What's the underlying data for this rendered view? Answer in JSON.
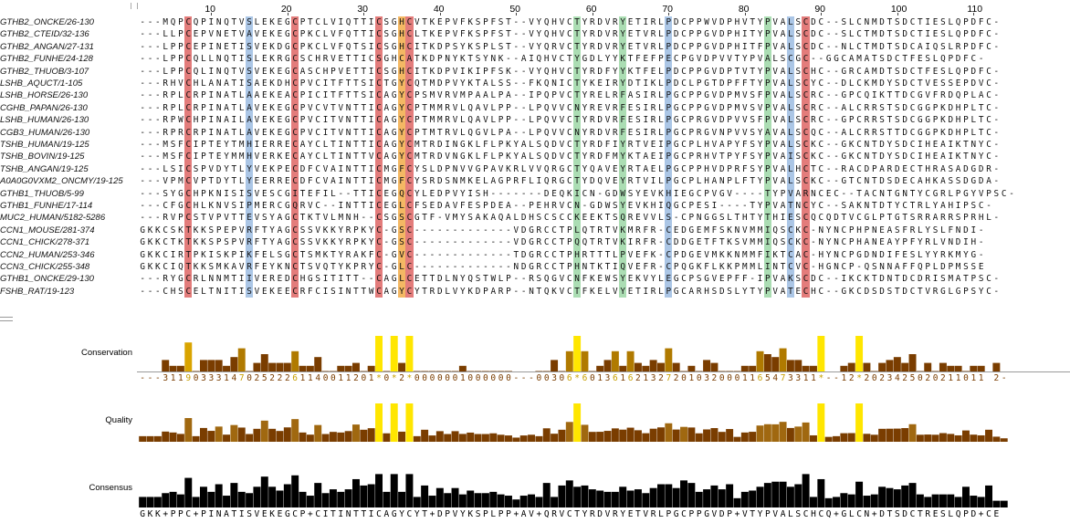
{
  "ruler_ticks": [
    10,
    20,
    30,
    40,
    50,
    60,
    70,
    80,
    90,
    100,
    110
  ],
  "sequences": [
    {
      "name": "GTHB2_ONCKE/26-130",
      "seq": "---MQPCQPINQTVSLEKEGCPTCLVIQTTICSGHCVTKEPVFKSPFST--VYQHVCTYRDVRYETIRLPDCPPWVDPHVTYPVALSCDC--SLCNMDTSDCTIESLQPDFC-"
    },
    {
      "name": "GTHB2_CTEID/32-136",
      "seq": "---LLPCEPVNETVAVEKEGCPKCLVFQTTICSGHCLTKEPVFKSPFST--VYQHVCTYRDVRYETVRLPDCPPGVDPHITYPVALSCDC--SLCTMDTSDCTIESLQPDFC-"
    },
    {
      "name": "GTHB2_ANGAN/27-131",
      "seq": "---LPPCEPINETISVEKDGCPKCLVFQTSICSGHCITKDPSYKSPLST--VYQRVCTYRDVRYETVRLPDCPPGVDPHITFPVALSCDC--NLCTMDTSDCAIQSLRPDFC-"
    },
    {
      "name": "GTHB2_FUNHE/24-128",
      "seq": "---LPPCQLLNQTISLEKRGCSCHRVETTICSGHCATKDPNYKTSYNK--AIQHVCTYGDLYYKTFEFPECPGVDPVVTYPVALSCGC--GGCAMATSDCTFESLQPDFC-"
    },
    {
      "name": "GTHB2_THUOB/3-107",
      "seq": "---LPPCQLINQTVSVEKEGCASCHPVETTICSGHCITKDPVIKIPFSK--VYQHVCTYRDFYYKTFELPDCPPGVDPTVTYPVALSCHC--GRCAMDTSDCTFESLQPDFC-"
    },
    {
      "name": "LSHB_AQUCT/1-105",
      "seq": "---RHVCHLANATISAEKDHCPVCITFTTSICTGYCQTMDPVYKTALSS--FKQNICTYKEIRYDTIKLPDCLPGTDPFFTYPVALSCYC--DLCKMDYSDCTVESSEPDVC-"
    },
    {
      "name": "LSHB_HORSE/26-130",
      "seq": "---RPLCRPINATLAAEKEACPICITFTTSICAGYCPSMVRVMPAALPA--IPQPVCTYRELRFASIRLPGCPPGVDPMVSFPVALSCRC--GPCQIKTTDCGVFRDQPLAC-"
    },
    {
      "name": "CGHB_PAPAN/26-130",
      "seq": "---RPLCRPINATLAVEKEGCPVCVTVNTTICAGYCPTMMRVLQAVLPP--LPQVVCNYREVRFESIRLPGCPPGVDPMVSVPVALSCRC--ALCRRSTSDCGGPKDHPLTC-"
    },
    {
      "name": "LSHB_HUMAN/26-130",
      "seq": "---RPWCHPINAILAVEKEGCPVCITVNTTICAGYCPTMMRVLQAVLPP--LPQVVCTYRDVRFESIRLPGCPRGVDPVVSFPVALSCRC--GPCRRSTSDCGGPKDHPLTC-"
    },
    {
      "name": "CGB3_HUMAN/26-130",
      "seq": "---RPRCRPINATLAVEKEGCPVCITVNTTICAGYCPTMTRVLQGVLPA--LPQVVCNYRDVRFESIRLPGCPRGVNPVVSYAVALSCQC--ALCRRSTTDCGGPKDHPLTC-"
    },
    {
      "name": "TSHB_HUMAN/19-125",
      "seq": "---MSFCIPTEYTMHIERRECAYCLTINTTICAGYCMTRDINGKLFLPKYALSQDVCTYRDFIYRTVEIPGCPLHVAPYFSYPVALSCKC--GKCNTDYSDCIHEAIKTNYC-"
    },
    {
      "name": "TSHB_BOVIN/19-125",
      "seq": "---MSFCIPTEYMMHVERKECAYCLTINTTVCAGYCMTRDVNGKLFLPKYALSQDVCTYRDFMYKTAEIPGCPRHVTPYFSYPVAISCKC--GKCNTDYSDCIHEAIKTNYC-"
    },
    {
      "name": "TSHB_ANGAN/19-125",
      "seq": "---LSICSPVDYTLYVEKPECDFCVAINTTICMGFCYSLDPNVVGPAVKRLVVQRGCTYQAVEYRTAELPGCPPHVDPRFSYPVALHCTC--RACDPARDECTHRASADGDR-"
    },
    {
      "name": "A0A0G0VXM2_ONCMY/19-125",
      "seq": "---VPMCVPTDYTLYEERRECDFCVAINTTICMGFCYSRDSNMKELAGPRFLIQRGCTYDQVEYRTVILPGCPLHANPLFTYPVALSCKC--GTCNTDSDECAHKASSDGDA-"
    },
    {
      "name": "GTHB1_THUOB/5-99",
      "seq": "---SYGCHPKNISISVESCGITEFIL--TTICEGQCYLEDPVYISH-------DEQKICN-GDWSYEVKHIEGCPVGV----TYPVARNCEC--TACNTGNTYCGRLPGYVPSC-"
    },
    {
      "name": "GTHB1_FUNHE/17-114",
      "seq": "---CFGCHLKNVSIPMERCGQRVC--INTTICEGLCFSEDAVFESPDEA--PEHRVCN-GDWSYEVKHIQGCPESI----TYPVATNCYC--SAKNTDTYCTRLYAHIPSC-"
    },
    {
      "name": "MUC2_HUMAN/5182-5286",
      "seq": "---RVPCSTVPVTTEVSYAGCTKTVLMNH--CSGSCGTF-VMYSAKAQALDHSCSCCKEEKTSQREVVLS-CPNGGSLTHTYTHIESCQCQDTVCGLPTGTSRRARRSPRHL-"
    },
    {
      "name": "CCN1_MOUSE/281-374",
      "seq": "GKKCSKTKKSPEPVRFTYAGCSSVKKYRPKYC-GSC-------------VDGRCCTPLQTRTVKMRFR-CEDGEMFSKNVMMIQSCKC-NYNCPHPNEASFRLYSLFNDI-"
    },
    {
      "name": "CCN1_CHICK/278-371",
      "seq": "GKKCTKTKKSPSPVRFTYAGCSSVKKYRPKYC-GSC-------------VDGRCCTPQQTRTVKIRFR-CDDGETFTKSVMMIQSCKC-NYNCPHANEAYPFYRLVNDIH-"
    },
    {
      "name": "CCN2_HUMAN/253-346",
      "seq": "GKKCIRTPKISKPIKFELSGCTSMKTYRAKFC-GVC-------------TDGRCCTPHRTTTLPVEFK-CPDGEVMKKNMMFIKTCAC-HYNCPGDNDIFESLYYRKMYG-"
    },
    {
      "name": "CCN3_CHICK/255-348",
      "seq": "GKKCIQTKKSMKAVRFEYKNCTSVQTYKPRYC-GLC-------------NDGRCCTPHNTKTIQVEFR-CPQGKFLKKPMMLINTCVC-HGNCP-QSNNAFFQPLDPMSSE"
    },
    {
      "name": "GTHB1_ONCKE/29-130",
      "seq": "---RYGCRLNNMTIIVEREDCHGSITITT--CAGLCETTDLNYQSTWLP--RSQGVCNFKEWSYEKVYLEGCPSGVEPFF-IPVAKSCDC--IKCKTDNTDCDRISMATPSC-"
    },
    {
      "name": "FSHB_RAT/19-123",
      "seq": "---CHSCELTNITISVEKEECRFCISINTTWCAGYCYTRDLVYKDPARP--NTQKVCTFKELVYETIRLPGCARHSDSLYTYPVATECHC--GKCDSDSTDCTVRGLGPSYC-"
    }
  ],
  "annotations": {
    "conservation_label": "Conservation",
    "quality_label": "Quality",
    "consensus_label": "Consensus",
    "conservation_digits": "---3119033314702522261140011201*0*2*0000001000000---00306*6013616213272010320001165473311*--12*2023425020211011 2-",
    "consensus_seq": "GKK+PPC+PINATISVEKEGCP+CITINTTICAGYCYT+DPVYKSPLPP+AV+QRVCTYRDVRYETVRLPGCPPGVDP+VTYPVALSCHCQ+GLCN+DTSDCTRESLQPD+CE"
  },
  "colors": {
    "cys": "#d9504f",
    "blue": "#8fb3dd",
    "green": "#8fd19a",
    "orange": "#f0a030",
    "cons_dark": "#7a3d00",
    "cons_bright": "#ffe600",
    "consensus_bar": "#000000"
  }
}
